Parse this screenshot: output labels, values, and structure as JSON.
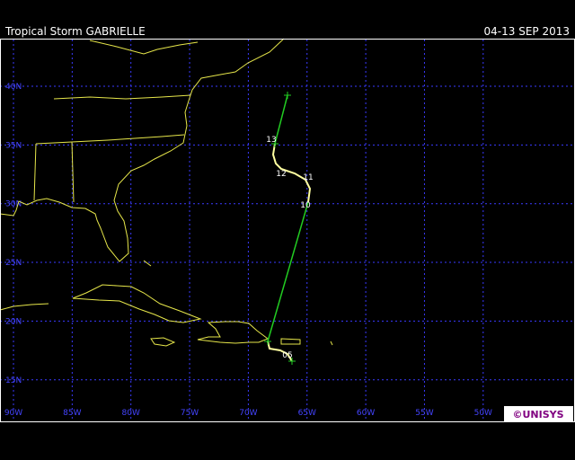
{
  "header": {
    "title": "Tropical Storm GABRIELLE",
    "date": "04-13 SEP 2013"
  },
  "map": {
    "lat_labels": [
      "40N",
      "35N",
      "30N",
      "25N",
      "20N",
      "15N"
    ],
    "lon_labels": [
      "90W",
      "85W",
      "80W",
      "75W",
      "70W",
      "65W",
      "60W",
      "55W",
      "50W"
    ],
    "track_labels": [
      "13",
      "12",
      "11",
      "10",
      "05"
    ]
  },
  "logo": "©UNISYS"
}
